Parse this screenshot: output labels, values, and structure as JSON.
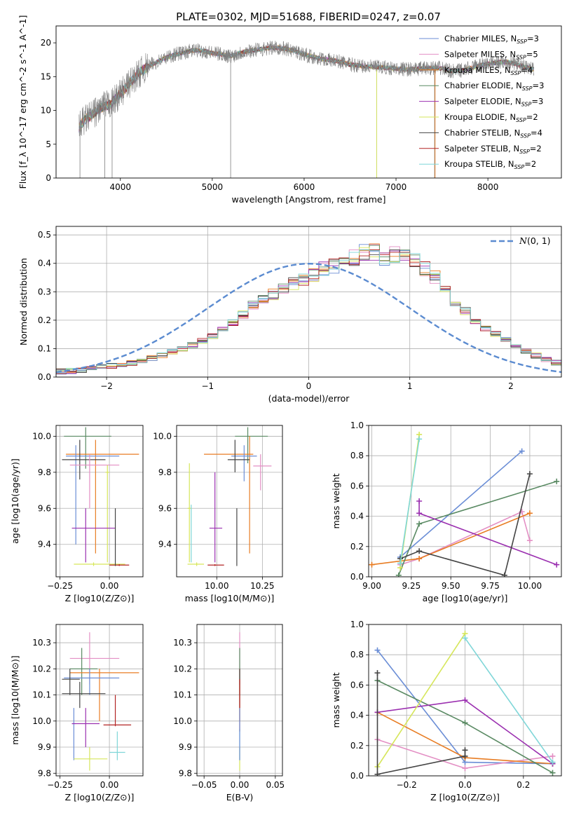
{
  "figure": {
    "title": "PLATE=0302, MJD=51688, FIBERID=0247, z=0.07"
  },
  "colors": {
    "chabrier_miles": "#6b8ed6",
    "salpeter_miles": "#e38fc4",
    "kroupa_miles": "#e87d24",
    "chabrier_elodie": "#5a8a63",
    "salpeter_elodie": "#9b30b0",
    "kroupa_elodie": "#d6e65b",
    "chabrier_stelib": "#444444",
    "salpeter_stelib": "#b32424",
    "kroupa_stelib": "#7fd6d8",
    "grid": "#b0b0b0",
    "spectrum_data": "#7f7f7f",
    "normal_curve": "#5b8bd0"
  },
  "chart_data": [
    {
      "id": "spectrum",
      "type": "line",
      "xlabel": "wavelength [Angstrom, rest frame]",
      "ylabel": "Flux [f_λ 10^-17 erg cm^-2 s^-1 A^-1]",
      "xlim": [
        3300,
        8800
      ],
      "ylim": [
        0,
        22.5
      ],
      "xticks": [
        4000,
        5000,
        6000,
        7000,
        8000
      ],
      "yticks": [
        0,
        5,
        10,
        15,
        20
      ],
      "grid": false,
      "legend_position": "upper right",
      "continuum": {
        "x": [
          3550,
          3600,
          3700,
          3800,
          3900,
          4000,
          4100,
          4200,
          4300,
          4400,
          4500,
          4600,
          4700,
          4800,
          4900,
          5000,
          5100,
          5200,
          5300,
          5400,
          5500,
          5600,
          5700,
          5800,
          5900,
          6000,
          6100,
          6200,
          6300,
          6400,
          6500,
          6600,
          6700,
          6800,
          6900,
          7000,
          7100,
          7200,
          7300,
          7400,
          7500,
          7600,
          7700,
          7800,
          7900,
          8000,
          8100,
          8200,
          8300,
          8400,
          8500
        ],
        "y": [
          7.5,
          8.5,
          9.5,
          10.5,
          11,
          12.5,
          14,
          15.5,
          16.5,
          17.2,
          17.8,
          18.3,
          18.6,
          18.9,
          18.8,
          18.5,
          18.3,
          18,
          18.5,
          18.8,
          19,
          19.2,
          19.3,
          19.1,
          18.8,
          18.3,
          17.9,
          17.6,
          17.4,
          17.2,
          16.8,
          16.6,
          16.5,
          16.4,
          16.3,
          16.2,
          16.1,
          16.1,
          16.2,
          16.3,
          16.2,
          15.8,
          15.9,
          16.2,
          16.6,
          16.9,
          17.1,
          17.2,
          16.9,
          16.4,
          16.1
        ]
      },
      "series": [
        {
          "name": "Chabrier MILES, N_SSP=3",
          "color_key": "chabrier_miles"
        },
        {
          "name": "Salpeter MILES, N_SSP=5",
          "color_key": "salpeter_miles"
        },
        {
          "name": "Kroupa MILES, N_SSP=4",
          "color_key": "kroupa_miles"
        },
        {
          "name": "Chabrier ELODIE, N_SSP=3",
          "color_key": "chabrier_elodie"
        },
        {
          "name": "Salpeter ELODIE, N_SSP=3",
          "color_key": "salpeter_elodie"
        },
        {
          "name": "Kroupa ELODIE, N_SSP=2",
          "color_key": "kroupa_elodie"
        },
        {
          "name": "Chabrier STELIB, N_SSP=4",
          "color_key": "chabrier_stelib"
        },
        {
          "name": "Salpeter STELIB, N_SSP=2",
          "color_key": "salpeter_stelib"
        },
        {
          "name": "Kroupa STELIB, N_SSP=2",
          "color_key": "kroupa_stelib"
        }
      ]
    },
    {
      "id": "residuals",
      "type": "area",
      "xlabel": "(data-model)/error",
      "ylabel": "Normed distribution",
      "xlim": [
        -2.5,
        2.5
      ],
      "ylim": [
        0,
        0.53
      ],
      "xticks": [
        -2,
        -1,
        0,
        1,
        2
      ],
      "yticks": [
        0.0,
        0.1,
        0.2,
        0.3,
        0.4,
        0.5
      ],
      "grid": true,
      "legend_position": "upper right",
      "normal_curve_label": "N(0,1)",
      "bin_start": -2.5,
      "bin_width": 0.1,
      "envelope": [
        0.02,
        0.021,
        0.025,
        0.03,
        0.035,
        0.04,
        0.045,
        0.05,
        0.058,
        0.066,
        0.076,
        0.088,
        0.1,
        0.113,
        0.127,
        0.145,
        0.165,
        0.19,
        0.22,
        0.25,
        0.27,
        0.29,
        0.31,
        0.33,
        0.34,
        0.36,
        0.38,
        0.39,
        0.4,
        0.42,
        0.44,
        0.44,
        0.42,
        0.43,
        0.42,
        0.41,
        0.38,
        0.35,
        0.3,
        0.26,
        0.23,
        0.2,
        0.17,
        0.15,
        0.13,
        0.11,
        0.09,
        0.075,
        0.062,
        0.05,
        0.045,
        0.04,
        0.035,
        0.03,
        0.025
      ]
    },
    {
      "id": "age_vs_Z",
      "type": "scatter",
      "xlabel": "Z [log10(Z/Z⊙)]",
      "ylabel": "age [log10(age/yr)]",
      "xlim": [
        -0.27,
        0.17
      ],
      "ylim": [
        9.22,
        10.06
      ],
      "xticks": [
        -0.25,
        0.0
      ],
      "xtick_labels": [
        "−0.25",
        "0.00"
      ],
      "yticks": [
        9.4,
        9.6,
        9.8,
        10.0
      ],
      "grid": true,
      "points": [
        {
          "c": "chabrier_elodie",
          "x": -0.12,
          "y": 10.0,
          "xe": [
            -0.23,
            0.01
          ],
          "ye": [
            9.82,
            10.05
          ]
        },
        {
          "c": "kroupa_miles",
          "x": -0.07,
          "y": 9.9,
          "xe": [
            -0.22,
            0.15
          ],
          "ye": [
            9.35,
            9.98
          ]
        },
        {
          "c": "chabrier_miles",
          "x": -0.17,
          "y": 9.89,
          "xe": [
            -0.22,
            0.05
          ],
          "ye": [
            9.4,
            9.95
          ]
        },
        {
          "c": "chabrier_stelib",
          "x": -0.15,
          "y": 9.87,
          "xe": [
            -0.24,
            -0.02
          ],
          "ye": [
            9.76,
            9.98
          ]
        },
        {
          "c": "salpeter_miles",
          "x": -0.1,
          "y": 9.84,
          "xe": [
            -0.2,
            0.05
          ],
          "ye": [
            9.6,
            9.9
          ]
        },
        {
          "c": "kroupa_elodie",
          "x": -0.01,
          "y": 9.8,
          "xe": [
            -0.02,
            0.0
          ],
          "ye": [
            9.3,
            9.84
          ]
        },
        {
          "c": "salpeter_elodie",
          "x": -0.12,
          "y": 9.49,
          "xe": [
            -0.19,
            0.03
          ],
          "ye": [
            9.3,
            9.6
          ]
        },
        {
          "c": "kroupa_elodie",
          "x": -0.08,
          "y": 9.29,
          "xe": [
            -0.18,
            0.08
          ],
          "ye": [
            9.28,
            9.3
          ]
        },
        {
          "c": "salpeter_stelib",
          "x": 0.05,
          "y": 9.285,
          "xe": [
            0.0,
            0.1
          ],
          "ye": [
            9.28,
            9.29
          ]
        },
        {
          "c": "chabrier_stelib",
          "x": 0.03,
          "y": 9.285,
          "xe": [
            0.03,
            0.03
          ],
          "ye": [
            9.28,
            9.6
          ]
        }
      ]
    },
    {
      "id": "age_vs_mass",
      "type": "scatter",
      "xlabel": "mass [log10(M/M⊙)]",
      "ylabel": "",
      "xlim": [
        9.78,
        10.36
      ],
      "ylim": [
        9.22,
        10.06
      ],
      "xticks": [
        10.0,
        10.25
      ],
      "xtick_labels": [
        "10.00",
        "10.25"
      ],
      "yticks": [
        9.4,
        9.6,
        9.8,
        10.0
      ],
      "grid": true,
      "points": [
        {
          "c": "chabrier_elodie",
          "x": 10.17,
          "y": 10.0,
          "xe": [
            10.1,
            10.28
          ],
          "ye": [
            9.85,
            10.05
          ]
        },
        {
          "c": "kroupa_miles",
          "x": 10.18,
          "y": 9.9,
          "xe": [
            9.93,
            10.2
          ],
          "ye": [
            9.35,
            10.0
          ]
        },
        {
          "c": "chabrier_miles",
          "x": 10.15,
          "y": 9.89,
          "xe": [
            10.08,
            10.22
          ],
          "ye": [
            9.75,
            9.95
          ]
        },
        {
          "c": "chabrier_stelib",
          "x": 10.1,
          "y": 9.87,
          "xe": [
            10.06,
            10.18
          ],
          "ye": [
            9.8,
            9.98
          ]
        },
        {
          "c": "salpeter_miles",
          "x": 10.24,
          "y": 9.835,
          "xe": [
            10.2,
            10.3
          ],
          "ye": [
            9.7,
            9.9
          ]
        },
        {
          "c": "kroupa_elodie",
          "x": 9.85,
          "y": 9.6,
          "xe": [
            9.84,
            9.86
          ],
          "ye": [
            9.3,
            9.85
          ]
        },
        {
          "c": "salpeter_elodie",
          "x": 9.99,
          "y": 9.49,
          "xe": [
            9.96,
            10.03
          ],
          "ye": [
            9.3,
            9.8
          ]
        },
        {
          "c": "kroupa_stelib",
          "x": 9.86,
          "y": 9.5,
          "xe": [
            9.86,
            9.86
          ],
          "ye": [
            9.3,
            9.62
          ]
        },
        {
          "c": "kroupa_elodie",
          "x": 9.89,
          "y": 9.29,
          "xe": [
            9.84,
            9.93
          ],
          "ye": [
            9.28,
            9.3
          ]
        },
        {
          "c": "salpeter_stelib",
          "x": 9.99,
          "y": 9.285,
          "xe": [
            9.95,
            10.04
          ],
          "ye": [
            9.28,
            9.29
          ]
        },
        {
          "c": "chabrier_stelib",
          "x": 10.11,
          "y": 9.285,
          "xe": [
            10.11,
            10.11
          ],
          "ye": [
            9.28,
            9.6
          ]
        }
      ]
    },
    {
      "id": "weight_vs_age",
      "type": "line",
      "xlabel": "age [log10(age/yr)]",
      "ylabel": "mass weight",
      "xlim": [
        8.98,
        10.2
      ],
      "ylim": [
        0,
        1.0
      ],
      "xticks": [
        9.0,
        9.25,
        9.5,
        9.75,
        10.0
      ],
      "xtick_labels": [
        "9.00",
        "9.25",
        "9.50",
        "9.75",
        "10.00"
      ],
      "yticks": [
        0.0,
        0.2,
        0.4,
        0.6,
        0.8,
        1.0
      ],
      "grid": true,
      "series": [
        {
          "c": "chabrier_miles",
          "x": [
            9.18,
            9.95
          ],
          "y": [
            0.13,
            0.83
          ]
        },
        {
          "c": "salpeter_miles",
          "x": [
            9.18,
            9.3,
            9.95,
            10.0
          ],
          "y": [
            0.08,
            0.12,
            0.43,
            0.24
          ]
        },
        {
          "c": "kroupa_miles",
          "x": [
            9.0,
            9.3,
            10.0
          ],
          "y": [
            0.08,
            0.12,
            0.42
          ]
        },
        {
          "c": "chabrier_elodie",
          "x": [
            9.17,
            9.3,
            10.17
          ],
          "y": [
            0.01,
            0.35,
            0.63
          ]
        },
        {
          "c": "salpeter_elodie",
          "x": [
            9.3,
            9.3,
            10.17
          ],
          "y": [
            0.5,
            0.42,
            0.08
          ]
        },
        {
          "c": "kroupa_elodie",
          "x": [
            9.18,
            9.3
          ],
          "y": [
            0.06,
            0.94
          ]
        },
        {
          "c": "chabrier_stelib",
          "x": [
            9.18,
            9.3,
            9.84,
            10.0
          ],
          "y": [
            0.12,
            0.17,
            0.01,
            0.68
          ]
        },
        {
          "c": "kroupa_stelib",
          "x": [
            9.18,
            9.3
          ],
          "y": [
            0.09,
            0.91
          ]
        }
      ]
    },
    {
      "id": "mass_vs_Z",
      "type": "scatter",
      "xlabel": "Z [log10(Z/Z⊙)]",
      "ylabel": "mass [log10(M/M⊙)]",
      "xlim": [
        -0.27,
        0.17
      ],
      "ylim": [
        9.79,
        10.37
      ],
      "xticks": [
        -0.25,
        0.0
      ],
      "xtick_labels": [
        "−0.25",
        "0.00"
      ],
      "yticks": [
        9.8,
        9.9,
        10.0,
        10.1,
        10.2,
        10.3
      ],
      "grid": true,
      "points": [
        {
          "c": "salpeter_miles",
          "x": -0.1,
          "y": 10.24,
          "xe": [
            -0.2,
            0.05
          ],
          "ye": [
            10.14,
            10.34
          ]
        },
        {
          "c": "chabrier_elodie",
          "x": -0.14,
          "y": 10.2,
          "xe": [
            -0.2,
            -0.06
          ],
          "ye": [
            10.1,
            10.28
          ]
        },
        {
          "c": "kroupa_miles",
          "x": -0.05,
          "y": 10.185,
          "xe": [
            -0.2,
            0.15
          ],
          "ye": [
            10.0,
            10.2
          ]
        },
        {
          "c": "chabrier_miles",
          "x": -0.1,
          "y": 10.165,
          "xe": [
            -0.23,
            0.05
          ],
          "ye": [
            10.1,
            10.2
          ]
        },
        {
          "c": "chabrier_stelib",
          "x": -0.2,
          "y": 10.16,
          "xe": [
            -0.24,
            -0.15
          ],
          "ye": [
            10.1,
            10.2
          ]
        },
        {
          "c": "chabrier_stelib",
          "x": -0.15,
          "y": 10.105,
          "xe": [
            -0.24,
            -0.02
          ],
          "ye": [
            10.05,
            10.15
          ]
        },
        {
          "c": "chabrier_miles",
          "x": -0.18,
          "y": 9.99,
          "xe": [
            -0.19,
            -0.17
          ],
          "ye": [
            9.85,
            10.05
          ]
        },
        {
          "c": "salpeter_elodie",
          "x": -0.12,
          "y": 9.99,
          "xe": [
            -0.19,
            -0.05
          ],
          "ye": [
            9.9,
            10.05
          ]
        },
        {
          "c": "salpeter_stelib",
          "x": 0.03,
          "y": 9.985,
          "xe": [
            -0.03,
            0.11
          ],
          "ye": [
            9.98,
            10.1
          ]
        },
        {
          "c": "kroupa_stelib",
          "x": 0.04,
          "y": 9.88,
          "xe": [
            0.0,
            0.08
          ],
          "ye": [
            9.85,
            9.96
          ]
        },
        {
          "c": "kroupa_elodie",
          "x": -0.1,
          "y": 9.855,
          "xe": [
            -0.18,
            -0.01
          ],
          "ye": [
            9.81,
            9.9
          ]
        }
      ]
    },
    {
      "id": "mass_vs_ebv",
      "type": "scatter",
      "xlabel": "E(B-V)",
      "ylabel": "",
      "xlim": [
        -0.06,
        0.06
      ],
      "ylim": [
        9.79,
        10.37
      ],
      "xticks": [
        -0.05,
        0.0,
        0.05
      ],
      "xtick_labels": [
        "−0.05",
        "0.00",
        "0.05"
      ],
      "yticks": [
        9.8,
        9.9,
        10.0,
        10.1,
        10.2,
        10.3
      ],
      "grid": true,
      "vlines": [
        {
          "c": "salpeter_miles",
          "y": [
            10.14,
            10.34
          ]
        },
        {
          "c": "chabrier_elodie",
          "y": [
            10.1,
            10.28
          ]
        },
        {
          "c": "kroupa_miles",
          "y": [
            10.0,
            10.2
          ]
        },
        {
          "c": "chabrier_stelib",
          "y": [
            10.05,
            10.2
          ]
        },
        {
          "c": "salpeter_stelib",
          "y": [
            9.96,
            10.16
          ]
        },
        {
          "c": "kroupa_stelib",
          "y": [
            9.85,
            9.97
          ]
        },
        {
          "c": "kroupa_elodie",
          "y": [
            9.81,
            9.9
          ]
        },
        {
          "c": "chabrier_miles",
          "y": [
            9.85,
            10.05
          ]
        }
      ]
    },
    {
      "id": "weight_vs_Z",
      "type": "line",
      "xlabel": "Z [log10(Z/Z⊙)]",
      "ylabel": "mass weight",
      "xlim": [
        -0.33,
        0.33
      ],
      "ylim": [
        0,
        1.0
      ],
      "xticks": [
        -0.2,
        0.0,
        0.2
      ],
      "xtick_labels": [
        "−0.2",
        "0.0",
        "0.2"
      ],
      "yticks": [
        0.0,
        0.2,
        0.4,
        0.6,
        0.8,
        1.0
      ],
      "grid": true,
      "series": [
        {
          "c": "chabrier_miles",
          "x": [
            -0.3,
            0.0,
            0.3
          ],
          "y": [
            0.83,
            0.09,
            0.08
          ]
        },
        {
          "c": "salpeter_miles",
          "x": [
            -0.3,
            0.0,
            0.3
          ],
          "y": [
            0.24,
            0.05,
            0.13
          ]
        },
        {
          "c": "kroupa_miles",
          "x": [
            -0.3,
            0.0,
            0.3
          ],
          "y": [
            0.42,
            0.12,
            0.08
          ]
        },
        {
          "c": "chabrier_elodie",
          "x": [
            -0.3,
            0.0,
            0.3
          ],
          "y": [
            0.63,
            0.35,
            0.02
          ]
        },
        {
          "c": "salpeter_elodie",
          "x": [
            -0.3,
            0.0,
            0.3
          ],
          "y": [
            0.42,
            0.5,
            0.08
          ]
        },
        {
          "c": "kroupa_elodie",
          "x": [
            -0.3,
            0.0
          ],
          "y": [
            0.06,
            0.94
          ]
        },
        {
          "c": "chabrier_stelib",
          "x": [
            -0.3,
            -0.3,
            0.0,
            0.0
          ],
          "y": [
            0.68,
            0.01,
            0.13,
            0.17
          ]
        },
        {
          "c": "kroupa_stelib",
          "x": [
            0.0,
            0.3
          ],
          "y": [
            0.91,
            0.09
          ]
        }
      ]
    }
  ]
}
